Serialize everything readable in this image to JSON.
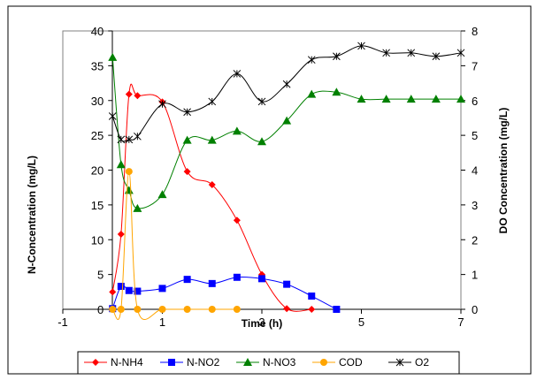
{
  "chart_data": {
    "type": "line",
    "title": "",
    "xlabel": "Time (h)",
    "ylabel_left": "N-Concentration (mg/L)",
    "ylabel_right": "DO Concentration (mg/L)",
    "xlim": [
      -1,
      7
    ],
    "xticks": [
      "-1",
      "1",
      "3",
      "5",
      "7"
    ],
    "ylim_left": [
      0,
      40
    ],
    "yticks_left": [
      "0",
      "5",
      "10",
      "15",
      "20",
      "25",
      "30",
      "35",
      "40"
    ],
    "ylim_right": [
      0,
      8
    ],
    "yticks_right": [
      "0",
      "1",
      "2",
      "3",
      "4",
      "5",
      "6",
      "7",
      "8"
    ],
    "grid": false,
    "legend_position": "bottom",
    "series": [
      {
        "name": "N-NH4",
        "color": "#ff0000",
        "marker": "diamond",
        "axis": "left",
        "x": [
          0,
          0.17,
          0.33,
          0.5,
          1,
          1.5,
          2,
          2.5,
          3,
          3.5,
          4
        ],
        "y": [
          2.5,
          10.8,
          30.9,
          30.7,
          29.8,
          19.8,
          17.9,
          12.8,
          5.0,
          0.1,
          0.0
        ]
      },
      {
        "name": "N-NO2",
        "color": "#0000ff",
        "marker": "square",
        "axis": "left",
        "x": [
          0,
          0.17,
          0.33,
          0.5,
          1,
          1.5,
          2,
          2.5,
          3,
          3.5,
          4,
          4.5
        ],
        "y": [
          0.1,
          3.3,
          2.7,
          2.6,
          3.0,
          4.3,
          3.7,
          4.6,
          4.4,
          3.6,
          1.9,
          0.0
        ]
      },
      {
        "name": "N-NO3",
        "color": "#008000",
        "marker": "triangle",
        "axis": "left",
        "x": [
          0,
          0.17,
          0.33,
          0.5,
          1,
          1.5,
          2,
          2.5,
          3,
          3.5,
          4,
          4.5,
          5,
          5.5,
          6,
          6.5,
          7
        ],
        "y": [
          36.2,
          20.8,
          17.1,
          14.5,
          16.5,
          24.3,
          24.3,
          25.6,
          24.1,
          27.1,
          30.9,
          31.2,
          30.2,
          30.2,
          30.2,
          30.2,
          30.2
        ]
      },
      {
        "name": "COD",
        "color": "#ffa500",
        "marker": "circle",
        "axis": "left",
        "x": [
          0,
          0.17,
          0.33,
          0.5,
          1,
          1.5,
          2,
          2.5
        ],
        "y": [
          0.0,
          0.0,
          19.8,
          0.0,
          0.0,
          0.0,
          0.0,
          0.0
        ]
      },
      {
        "name": "O2",
        "color": "#000000",
        "marker": "star",
        "axis": "right",
        "x": [
          0,
          0.17,
          0.33,
          0.5,
          1,
          1.5,
          2,
          2.5,
          3,
          3.5,
          4,
          4.5,
          5,
          5.5,
          6,
          6.5,
          7
        ],
        "y": [
          5.55,
          4.88,
          4.88,
          4.97,
          5.9,
          5.67,
          5.97,
          6.77,
          5.97,
          6.47,
          7.17,
          7.27,
          7.57,
          7.37,
          7.37,
          7.27,
          7.37
        ]
      }
    ]
  }
}
